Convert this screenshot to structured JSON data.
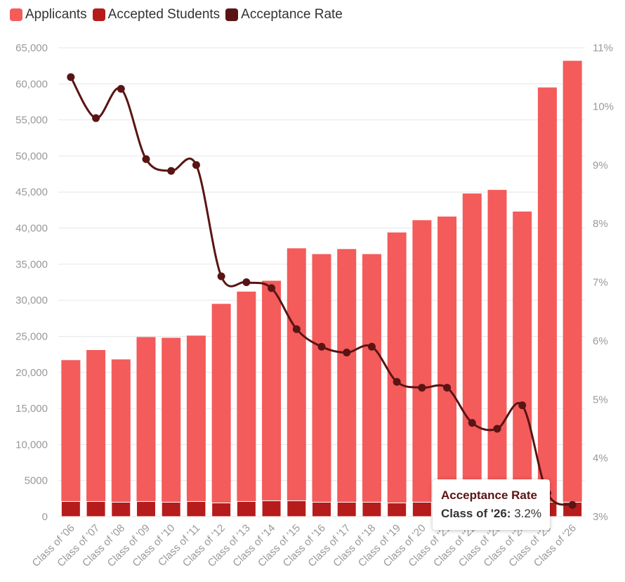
{
  "legend": {
    "items": [
      {
        "label": "Applicants",
        "color": "#f45b5b"
      },
      {
        "label": "Accepted Students",
        "color": "#b71c1c"
      },
      {
        "label": "Acceptance Rate",
        "color": "#5a1414"
      }
    ]
  },
  "tooltip": {
    "title": "Acceptance Rate",
    "label": "Class of '26:",
    "value": "3.2%"
  },
  "chart_data": {
    "type": "bar",
    "categories": [
      "Class of '06",
      "Class of '07",
      "Class of '08",
      "Class of '09",
      "Class of '10",
      "Class of '11",
      "Class of '12",
      "Class of '13",
      "Class of '14",
      "Class of '15",
      "Class of '16",
      "Class of '17",
      "Class of '18",
      "Class of '19",
      "Class of '20",
      "Class of '21",
      "Class of '22",
      "Class of '23",
      "Class of '24",
      "Class of '25",
      "Class of '26"
    ],
    "series": [
      {
        "name": "Applicants",
        "type": "bar",
        "axis": "left",
        "values": [
          21700,
          23100,
          21800,
          24900,
          24800,
          25100,
          29500,
          31200,
          32700,
          37200,
          36400,
          37100,
          36400,
          39400,
          41100,
          41600,
          44800,
          45300,
          42300,
          59500,
          63200
        ]
      },
      {
        "name": "Accepted Students",
        "type": "bar",
        "axis": "left",
        "values": [
          2100,
          2100,
          2000,
          2100,
          2000,
          2100,
          1900,
          2100,
          2200,
          2200,
          2000,
          2000,
          2000,
          1900,
          2000,
          2000,
          2000,
          2000,
          2000,
          2000,
          2000
        ]
      },
      {
        "name": "Acceptance Rate",
        "type": "line",
        "axis": "right",
        "values": [
          10.5,
          9.8,
          10.3,
          9.1,
          8.9,
          9.0,
          7.1,
          7.0,
          6.9,
          6.2,
          5.9,
          5.8,
          5.9,
          5.3,
          5.2,
          5.2,
          4.6,
          4.5,
          4.9,
          3.4,
          3.2
        ]
      }
    ],
    "yAxisLeft": {
      "min": 0,
      "max": 65000,
      "tickLabels": [
        "0",
        "5000",
        "10,000",
        "15,000",
        "20,000",
        "25,000",
        "30,000",
        "35,000",
        "40,000",
        "45,000",
        "50,000",
        "55,000",
        "60,000",
        "65,000"
      ]
    },
    "yAxisRight": {
      "min": 3,
      "max": 11,
      "tickLabels": [
        "3%",
        "4%",
        "5%",
        "6%",
        "7%",
        "8%",
        "9%",
        "10%",
        "11%"
      ]
    },
    "grid": true,
    "legend_position": "top-left"
  }
}
